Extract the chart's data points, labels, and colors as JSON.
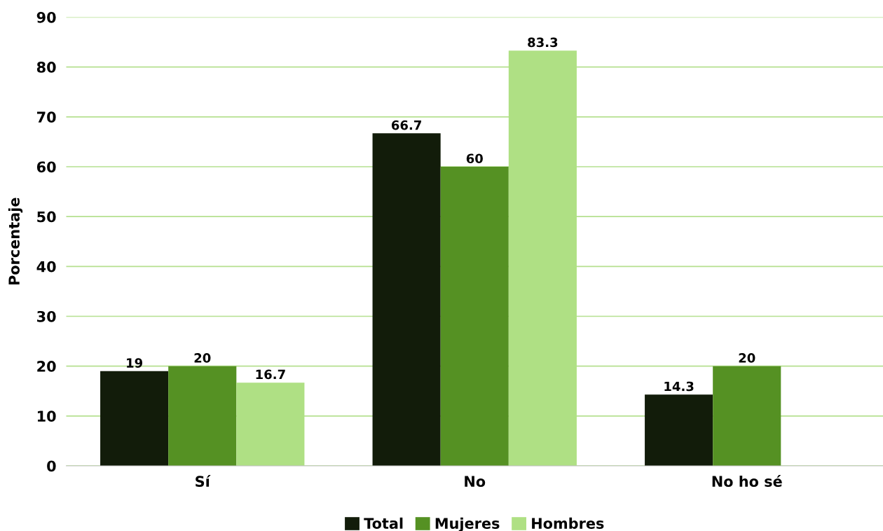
{
  "chart_data": {
    "type": "bar",
    "ylabel": "Porcentaje",
    "categories": [
      "Sí",
      "No",
      "No ho sé"
    ],
    "series": [
      {
        "name": "Total",
        "color": "#121c0a",
        "values": [
          19,
          66.7,
          14.3
        ]
      },
      {
        "name": "Mujeres",
        "color": "#559123",
        "values": [
          20,
          60,
          20
        ]
      },
      {
        "name": "Hombres",
        "color": "#afe084",
        "values": [
          16.7,
          83.3,
          null
        ]
      }
    ],
    "ylim": [
      0,
      90
    ],
    "yticks": [
      0,
      10,
      20,
      30,
      40,
      50,
      60,
      70,
      80,
      90
    ],
    "grid": "y",
    "legend": "bottom",
    "data_labels": true
  }
}
